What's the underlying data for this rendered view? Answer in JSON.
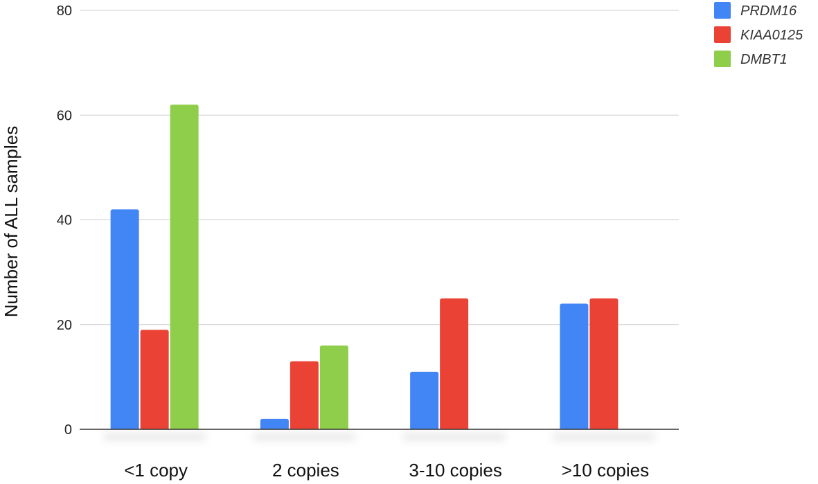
{
  "chart_data": {
    "type": "bar",
    "title": "",
    "xlabel": "",
    "ylabel": "Number of ALL samples",
    "ylim": [
      0,
      80
    ],
    "yticks": [
      0,
      20,
      40,
      60,
      80
    ],
    "grid": true,
    "legend_position": "top-right",
    "categories": [
      "<1 copy",
      "2 copies",
      "3-10 copies",
      ">10 copies"
    ],
    "series": [
      {
        "name": "PRDM16",
        "color": "#4285f4",
        "values": [
          42,
          2,
          11,
          24
        ]
      },
      {
        "name": "KIAA0125",
        "color": "#ea4335",
        "values": [
          19,
          13,
          25,
          25
        ]
      },
      {
        "name": "DMBT1",
        "color": "#8fce4a",
        "values": [
          62,
          16,
          null,
          null
        ]
      }
    ]
  }
}
